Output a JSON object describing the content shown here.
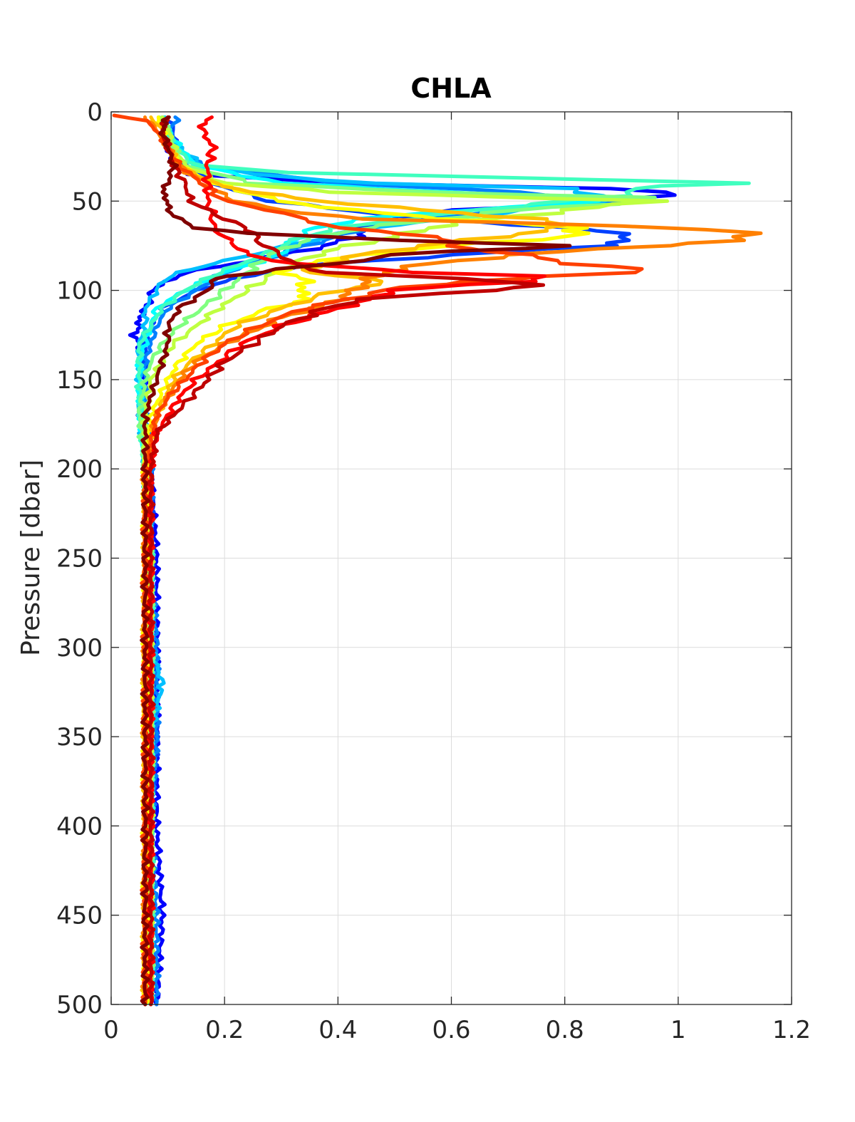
{
  "chart_data": {
    "type": "line",
    "title": "CHLA",
    "xlabel": "",
    "ylabel": "Pressure [dbar]",
    "xlim": [
      0,
      1.2
    ],
    "ylim": [
      0,
      500
    ],
    "y_reversed": true,
    "grid": true,
    "x_ticks": [
      "0",
      "0.2",
      "0.4",
      "0.6",
      "0.8",
      "1",
      "1.2"
    ],
    "y_ticks": [
      "0",
      "50",
      "100",
      "150",
      "200",
      "250",
      "300",
      "350",
      "400",
      "450",
      "500"
    ],
    "colormap": "jet",
    "series": [
      {
        "color": "#0000ff",
        "y": [
          3,
          10,
          20,
          30,
          35,
          40,
          43,
          45,
          50,
          55,
          60,
          65,
          70,
          75,
          80,
          85,
          90,
          95,
          100,
          105,
          110,
          115,
          120,
          125,
          130,
          140,
          150,
          160,
          170,
          180,
          200,
          250,
          300,
          350,
          400,
          450,
          500
        ],
        "x": [
          0.09,
          0.09,
          0.1,
          0.11,
          0.14,
          0.42,
          0.9,
          0.99,
          0.9,
          0.6,
          0.49,
          0.45,
          0.43,
          0.38,
          0.3,
          0.22,
          0.13,
          0.1,
          0.07,
          0.07,
          0.06,
          0.05,
          0.05,
          0.04,
          0.05,
          0.05,
          0.06,
          0.06,
          0.06,
          0.06,
          0.07,
          0.08,
          0.08,
          0.08,
          0.08,
          0.09,
          0.08
        ]
      },
      {
        "color": "#0040ff",
        "y": [
          3,
          10,
          20,
          30,
          40,
          50,
          60,
          65,
          70,
          72,
          75,
          80,
          85,
          90,
          95,
          100,
          110,
          120,
          130,
          140,
          150,
          170,
          200,
          250,
          300,
          350,
          400,
          450,
          500
        ],
        "x": [
          0.1,
          0.11,
          0.11,
          0.13,
          0.18,
          0.28,
          0.55,
          0.82,
          0.92,
          0.91,
          0.86,
          0.62,
          0.38,
          0.27,
          0.2,
          0.15,
          0.09,
          0.07,
          0.06,
          0.06,
          0.06,
          0.05,
          0.07,
          0.07,
          0.07,
          0.08,
          0.07,
          0.07,
          0.07
        ]
      },
      {
        "color": "#0080ff",
        "y": [
          3,
          10,
          20,
          30,
          40,
          45,
          50,
          55,
          60,
          65,
          70,
          75,
          80,
          90,
          100,
          110,
          120,
          130,
          140,
          160,
          200,
          250,
          300,
          350,
          400,
          450,
          500
        ],
        "x": [
          0.12,
          0.1,
          0.11,
          0.16,
          0.4,
          0.72,
          0.9,
          0.7,
          0.55,
          0.45,
          0.4,
          0.34,
          0.3,
          0.2,
          0.15,
          0.1,
          0.08,
          0.07,
          0.06,
          0.06,
          0.07,
          0.07,
          0.08,
          0.08,
          0.07,
          0.08,
          0.08
        ]
      },
      {
        "color": "#00bfff",
        "y": [
          3,
          10,
          20,
          30,
          35,
          40,
          43,
          47,
          50,
          55,
          60,
          65,
          70,
          75,
          80,
          85,
          90,
          95,
          100,
          110,
          120,
          130,
          140,
          160,
          200,
          250,
          300,
          320,
          350,
          400,
          450,
          500
        ],
        "x": [
          0.09,
          0.1,
          0.12,
          0.16,
          0.25,
          0.46,
          0.8,
          0.88,
          0.85,
          0.72,
          0.6,
          0.45,
          0.38,
          0.31,
          0.25,
          0.18,
          0.12,
          0.09,
          0.08,
          0.06,
          0.06,
          0.05,
          0.05,
          0.05,
          0.06,
          0.07,
          0.07,
          0.09,
          0.07,
          0.07,
          0.07,
          0.07
        ]
      },
      {
        "color": "#00ffff",
        "y": [
          3,
          10,
          20,
          30,
          40,
          45,
          50,
          55,
          60,
          65,
          70,
          75,
          80,
          90,
          100,
          110,
          120,
          130,
          140,
          160,
          200,
          250,
          300,
          350,
          400,
          450,
          500
        ],
        "x": [
          0.09,
          0.1,
          0.12,
          0.15,
          0.3,
          0.6,
          0.88,
          0.62,
          0.44,
          0.36,
          0.33,
          0.31,
          0.3,
          0.2,
          0.13,
          0.08,
          0.07,
          0.06,
          0.05,
          0.05,
          0.06,
          0.07,
          0.07,
          0.07,
          0.07,
          0.07,
          0.07
        ]
      },
      {
        "color": "#40ffbf",
        "y": [
          3,
          10,
          20,
          30,
          34,
          38,
          40,
          43,
          47,
          50,
          55,
          60,
          65,
          70,
          75,
          80,
          90,
          100,
          110,
          120,
          130,
          140,
          160,
          200,
          250,
          300,
          350,
          400,
          450,
          500
        ],
        "x": [
          0.09,
          0.1,
          0.11,
          0.15,
          0.32,
          0.85,
          1.1,
          0.92,
          0.9,
          0.8,
          0.65,
          0.52,
          0.4,
          0.34,
          0.3,
          0.27,
          0.19,
          0.13,
          0.09,
          0.07,
          0.05,
          0.05,
          0.05,
          0.06,
          0.07,
          0.07,
          0.07,
          0.07,
          0.07,
          0.07
        ]
      },
      {
        "color": "#80ff80",
        "y": [
          3,
          10,
          20,
          30,
          40,
          45,
          48,
          50,
          55,
          60,
          65,
          70,
          75,
          80,
          90,
          100,
          110,
          120,
          130,
          140,
          150,
          170,
          200,
          250,
          300,
          350,
          400,
          450,
          500
        ],
        "x": [
          0.09,
          0.1,
          0.11,
          0.13,
          0.25,
          0.55,
          0.96,
          0.93,
          0.72,
          0.58,
          0.45,
          0.36,
          0.32,
          0.28,
          0.24,
          0.2,
          0.16,
          0.12,
          0.09,
          0.07,
          0.06,
          0.05,
          0.06,
          0.07,
          0.07,
          0.07,
          0.07,
          0.07,
          0.07
        ]
      },
      {
        "color": "#bfff40",
        "y": [
          3,
          10,
          20,
          30,
          40,
          45,
          50,
          55,
          60,
          65,
          70,
          75,
          80,
          90,
          100,
          110,
          120,
          130,
          140,
          150,
          170,
          200,
          250,
          300,
          350,
          400,
          450,
          500
        ],
        "x": [
          0.09,
          0.1,
          0.11,
          0.13,
          0.2,
          0.4,
          0.94,
          0.82,
          0.66,
          0.56,
          0.5,
          0.42,
          0.36,
          0.29,
          0.24,
          0.19,
          0.15,
          0.11,
          0.09,
          0.07,
          0.06,
          0.06,
          0.07,
          0.07,
          0.07,
          0.07,
          0.07,
          0.07
        ]
      },
      {
        "color": "#ffff00",
        "y": [
          3,
          10,
          20,
          30,
          40,
          50,
          55,
          60,
          65,
          68,
          70,
          75,
          80,
          85,
          90,
          95,
          100,
          105,
          110,
          120,
          130,
          140,
          150,
          170,
          200,
          250,
          300,
          350,
          400,
          450,
          500
        ],
        "x": [
          0.08,
          0.09,
          0.1,
          0.12,
          0.18,
          0.3,
          0.42,
          0.6,
          0.82,
          0.84,
          0.8,
          0.6,
          0.45,
          0.34,
          0.3,
          0.35,
          0.33,
          0.35,
          0.28,
          0.2,
          0.15,
          0.12,
          0.1,
          0.07,
          0.06,
          0.06,
          0.06,
          0.06,
          0.06,
          0.06,
          0.06
        ]
      },
      {
        "color": "#ffbf00",
        "y": [
          3,
          10,
          20,
          30,
          40,
          45,
          50,
          55,
          60,
          65,
          70,
          75,
          80,
          85,
          90,
          95,
          100,
          110,
          120,
          130,
          140,
          150,
          170,
          200,
          250,
          300,
          350,
          400,
          450,
          500
        ],
        "x": [
          0.07,
          0.09,
          0.1,
          0.12,
          0.18,
          0.25,
          0.37,
          0.55,
          0.75,
          0.8,
          0.68,
          0.55,
          0.44,
          0.38,
          0.34,
          0.5,
          0.4,
          0.3,
          0.22,
          0.18,
          0.14,
          0.11,
          0.08,
          0.06,
          0.06,
          0.06,
          0.06,
          0.06,
          0.06,
          0.06
        ]
      },
      {
        "color": "#ff8000",
        "y": [
          3,
          10,
          20,
          30,
          40,
          50,
          55,
          60,
          64,
          68,
          70,
          72,
          75,
          80,
          85,
          90,
          95,
          100,
          105,
          110,
          115,
          120,
          130,
          140,
          150,
          160,
          170,
          200,
          250,
          300,
          350,
          400,
          450,
          500
        ],
        "x": [
          0.06,
          0.08,
          0.1,
          0.12,
          0.16,
          0.22,
          0.3,
          0.44,
          0.94,
          1.12,
          1.13,
          1.11,
          0.95,
          0.72,
          0.56,
          0.48,
          0.45,
          0.43,
          0.4,
          0.36,
          0.3,
          0.27,
          0.2,
          0.15,
          0.12,
          0.1,
          0.08,
          0.06,
          0.06,
          0.06,
          0.06,
          0.06,
          0.06,
          0.06
        ]
      },
      {
        "color": "#ff4000",
        "y": [
          2,
          5,
          10,
          20,
          30,
          40,
          50,
          55,
          60,
          65,
          70,
          75,
          80,
          85,
          88,
          90,
          92,
          95,
          100,
          105,
          110,
          120,
          130,
          140,
          150,
          160,
          170,
          200,
          250,
          300,
          350,
          400,
          450,
          500
        ],
        "x": [
          0.01,
          0.06,
          0.08,
          0.1,
          0.12,
          0.16,
          0.2,
          0.28,
          0.34,
          0.4,
          0.58,
          0.6,
          0.72,
          0.82,
          0.92,
          0.91,
          0.8,
          0.62,
          0.48,
          0.42,
          0.34,
          0.26,
          0.2,
          0.16,
          0.13,
          0.1,
          0.08,
          0.06,
          0.06,
          0.06,
          0.06,
          0.06,
          0.06,
          0.06
        ]
      },
      {
        "color": "#ff0000",
        "y": [
          3,
          10,
          20,
          30,
          40,
          50,
          60,
          65,
          70,
          75,
          80,
          85,
          90,
          92,
          95,
          100,
          105,
          110,
          120,
          130,
          140,
          150,
          160,
          170,
          180,
          200,
          250,
          300,
          350,
          400,
          450,
          500
        ],
        "x": [
          0.17,
          0.16,
          0.18,
          0.17,
          0.17,
          0.17,
          0.18,
          0.18,
          0.2,
          0.22,
          0.24,
          0.32,
          0.55,
          0.75,
          0.73,
          0.49,
          0.46,
          0.4,
          0.3,
          0.23,
          0.19,
          0.15,
          0.12,
          0.1,
          0.08,
          0.07,
          0.07,
          0.07,
          0.07,
          0.07,
          0.07,
          0.07
        ]
      },
      {
        "color": "#bf0000",
        "y": [
          3,
          10,
          20,
          30,
          40,
          50,
          55,
          60,
          65,
          68,
          72,
          75,
          80,
          85,
          90,
          92,
          95,
          97,
          100,
          105,
          110,
          120,
          130,
          140,
          150,
          160,
          170,
          180,
          200,
          250,
          300,
          350,
          400,
          450,
          500
        ],
        "x": [
          0.1,
          0.09,
          0.1,
          0.11,
          0.13,
          0.14,
          0.17,
          0.2,
          0.24,
          0.25,
          0.26,
          0.27,
          0.3,
          0.32,
          0.38,
          0.52,
          0.7,
          0.76,
          0.66,
          0.44,
          0.38,
          0.3,
          0.25,
          0.2,
          0.17,
          0.14,
          0.11,
          0.08,
          0.07,
          0.07,
          0.07,
          0.07,
          0.07,
          0.07,
          0.07
        ]
      },
      {
        "color": "#800000",
        "y": [
          3,
          10,
          20,
          30,
          40,
          45,
          50,
          55,
          60,
          65,
          68,
          70,
          72,
          75,
          78,
          80,
          85,
          88,
          90,
          92,
          95,
          100,
          110,
          120,
          130,
          140,
          150,
          160,
          170,
          180,
          200,
          250,
          300,
          350,
          400,
          450,
          500
        ],
        "x": [
          0.1,
          0.09,
          0.1,
          0.11,
          0.1,
          0.09,
          0.1,
          0.1,
          0.12,
          0.15,
          0.24,
          0.38,
          0.52,
          0.8,
          0.62,
          0.5,
          0.4,
          0.3,
          0.26,
          0.2,
          0.18,
          0.17,
          0.12,
          0.1,
          0.1,
          0.09,
          0.08,
          0.07,
          0.06,
          0.06,
          0.06,
          0.06,
          0.06,
          0.06,
          0.06,
          0.06,
          0.06
        ]
      }
    ]
  }
}
